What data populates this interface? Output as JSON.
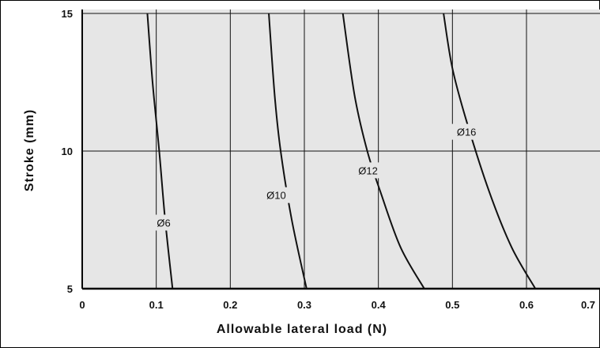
{
  "chart_data": {
    "type": "line",
    "title": "",
    "xlabel": "Allowable lateral load (N)",
    "ylabel": "Stroke (mm)",
    "xlim": [
      0,
      0.7
    ],
    "ylim": [
      5,
      15
    ],
    "x_ticks": [
      0,
      0.1,
      0.2,
      0.3,
      0.4,
      0.5,
      0.6,
      0.7
    ],
    "x_tick_labels": [
      "0",
      "0.1",
      "0.2",
      "0.3",
      "0.4",
      "0.5",
      "0.6",
      "0.7"
    ],
    "y_ticks": [
      5,
      10,
      15
    ],
    "y_tick_labels": [
      "5",
      "10",
      "15"
    ],
    "grid": true,
    "background": "#e6e6e6",
    "series": [
      {
        "name": "Ø6",
        "points": [
          [
            0.088,
            15
          ],
          [
            0.095,
            12.5
          ],
          [
            0.104,
            10
          ],
          [
            0.112,
            7.5
          ],
          [
            0.122,
            5
          ]
        ],
        "label_at": [
          0.11,
          7.4
        ]
      },
      {
        "name": "Ø10",
        "points": [
          [
            0.252,
            15
          ],
          [
            0.26,
            12
          ],
          [
            0.268,
            10
          ],
          [
            0.283,
            7.5
          ],
          [
            0.303,
            5
          ]
        ],
        "label_at": [
          0.262,
          8.4
        ]
      },
      {
        "name": "Ø12",
        "points": [
          [
            0.352,
            15
          ],
          [
            0.368,
            12
          ],
          [
            0.385,
            10
          ],
          [
            0.403,
            8.5
          ],
          [
            0.43,
            6.5
          ],
          [
            0.462,
            5
          ]
        ],
        "label_at": [
          0.386,
          9.3
        ]
      },
      {
        "name": "Ø16",
        "points": [
          [
            0.488,
            15
          ],
          [
            0.5,
            13
          ],
          [
            0.52,
            11
          ],
          [
            0.55,
            8.5
          ],
          [
            0.58,
            6.5
          ],
          [
            0.612,
            5
          ]
        ],
        "label_at": [
          0.519,
          10.7
        ]
      }
    ]
  }
}
